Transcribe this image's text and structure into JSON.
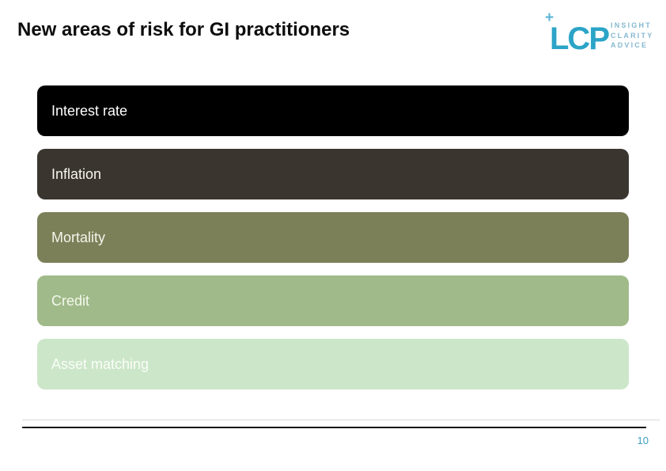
{
  "slide": {
    "title": "New areas of risk for GI practitioners"
  },
  "logo": {
    "plus_glyph": "+",
    "wordmark": "LCP",
    "tagline": [
      "INSIGHT",
      "CLARITY",
      "ADVICE"
    ],
    "wordmark_color": "#2ba4c7",
    "plus_color": "#5bb6d6",
    "tagline_color": "#86b8d0"
  },
  "risk_bars": [
    {
      "label": "Interest rate",
      "bg_color": "#000000",
      "label_color": "#ffffff"
    },
    {
      "label": "Inflation",
      "bg_color": "#3a352f",
      "label_color": "#f7f5f1"
    },
    {
      "label": "Mortality",
      "bg_color": "#7c8059",
      "label_color": "#f5f5ea"
    },
    {
      "label": "Credit",
      "bg_color": "#a0ba8a",
      "label_color": "#f3f8ec"
    },
    {
      "label": "Asset matching",
      "bg_color": "#cce6c9",
      "label_color": "#fafdf7"
    }
  ],
  "footer": {
    "page_number": "10",
    "page_number_color": "#3f9fc0"
  }
}
